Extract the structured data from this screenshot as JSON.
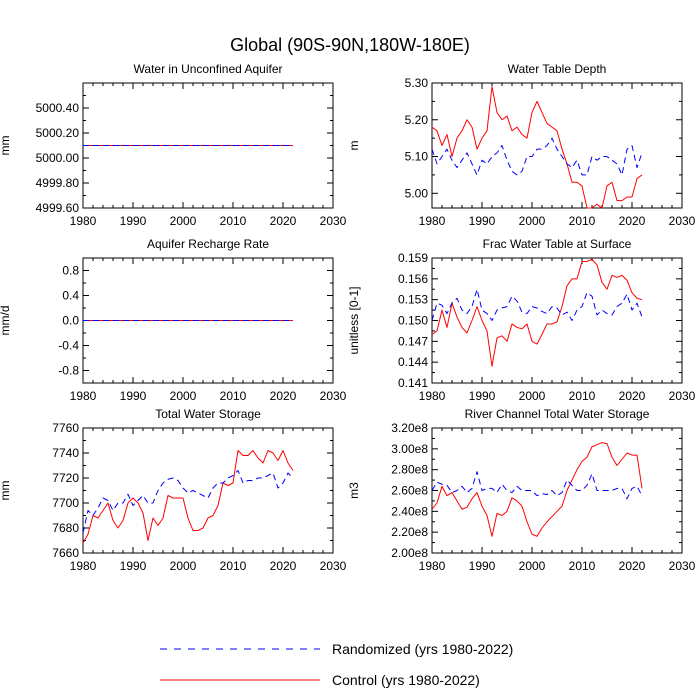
{
  "title": "Global (90S-90N,180W-180E)",
  "legend": [
    {
      "label": "Randomized (yrs 1980-2022)",
      "color": "#0000ff",
      "dash": "dashed"
    },
    {
      "label": "Control (yrs 1980-2022)",
      "color": "#ff0000",
      "dash": "solid"
    }
  ],
  "colors": {
    "randomized": "#0000ff",
    "control": "#ff0000"
  },
  "chart_data": [
    {
      "type": "line",
      "title": "Water in Unconfined Aquifer",
      "xlabel": "",
      "ylabel": "mm",
      "xlim": [
        1980,
        2030
      ],
      "ylim": [
        4999.6,
        5000.6
      ],
      "xticks": [
        1980,
        1990,
        2000,
        2010,
        2020,
        2030
      ],
      "yticks": [
        4999.6,
        4999.8,
        5000.0,
        5000.2,
        5000.4
      ],
      "ytick_labels": [
        "4999.60",
        "4999.80",
        "5000.00",
        "5000.20",
        "5000.40"
      ],
      "x": [
        1980,
        2022
      ],
      "series": [
        {
          "name": "Randomized (yrs 1980-2022)",
          "values": [
            5000.1,
            5000.1
          ]
        },
        {
          "name": "Control (yrs 1980-2022)",
          "values": [
            5000.1,
            5000.1
          ]
        }
      ]
    },
    {
      "type": "line",
      "title": "Water Table Depth",
      "xlabel": "",
      "ylabel": "m",
      "xlim": [
        1980,
        2030
      ],
      "ylim": [
        4.96,
        5.3
      ],
      "xticks": [
        1980,
        1990,
        2000,
        2010,
        2020,
        2030
      ],
      "yticks": [
        5.0,
        5.1,
        5.2,
        5.3
      ],
      "ytick_labels": [
        "5.00",
        "5.10",
        "5.20",
        "5.30"
      ],
      "x": [
        1980,
        1981,
        1982,
        1983,
        1984,
        1985,
        1986,
        1987,
        1988,
        1989,
        1990,
        1991,
        1992,
        1993,
        1994,
        1995,
        1996,
        1997,
        1998,
        1999,
        2000,
        2001,
        2002,
        2003,
        2004,
        2005,
        2006,
        2007,
        2008,
        2009,
        2010,
        2011,
        2012,
        2013,
        2014,
        2015,
        2016,
        2017,
        2018,
        2019,
        2020,
        2021,
        2022
      ],
      "series": [
        {
          "name": "Randomized (yrs 1980-2022)",
          "values": [
            5.12,
            5.08,
            5.1,
            5.12,
            5.09,
            5.07,
            5.09,
            5.11,
            5.08,
            5.05,
            5.09,
            5.08,
            5.1,
            5.11,
            5.13,
            5.09,
            5.06,
            5.05,
            5.06,
            5.1,
            5.1,
            5.12,
            5.12,
            5.13,
            5.15,
            5.12,
            5.1,
            5.08,
            5.07,
            5.09,
            5.05,
            5.05,
            5.1,
            5.09,
            5.1,
            5.1,
            5.09,
            5.08,
            5.05,
            5.12,
            5.13,
            5.07,
            5.11
          ]
        },
        {
          "name": "Control (yrs 1980-2022)",
          "values": [
            5.18,
            5.17,
            5.13,
            5.16,
            5.1,
            5.15,
            5.17,
            5.2,
            5.18,
            5.12,
            5.15,
            5.17,
            5.29,
            5.22,
            5.2,
            5.21,
            5.17,
            5.18,
            5.16,
            5.15,
            5.22,
            5.25,
            5.22,
            5.19,
            5.18,
            5.17,
            5.12,
            5.08,
            5.03,
            5.03,
            5.02,
            4.96,
            4.96,
            4.97,
            4.96,
            5.02,
            5.03,
            4.98,
            4.98,
            4.99,
            4.99,
            5.04,
            5.05
          ]
        }
      ]
    },
    {
      "type": "line",
      "title": "Aquifer Recharge Rate",
      "xlabel": "",
      "ylabel": "mm/d",
      "xlim": [
        1980,
        2030
      ],
      "ylim": [
        -1.0,
        1.0
      ],
      "xticks": [
        1980,
        1990,
        2000,
        2010,
        2020,
        2030
      ],
      "yticks": [
        -0.8,
        -0.4,
        0.0,
        0.4,
        0.8
      ],
      "ytick_labels": [
        "-0.8",
        "-0.4",
        "0.0",
        "0.4",
        "0.8"
      ],
      "x": [
        1980,
        2022
      ],
      "series": [
        {
          "name": "Randomized (yrs 1980-2022)",
          "values": [
            0.0,
            0.0
          ]
        },
        {
          "name": "Control (yrs 1980-2022)",
          "values": [
            0.0,
            0.0
          ]
        }
      ]
    },
    {
      "type": "line",
      "title": "Frac Water Table at Surface",
      "xlabel": "",
      "ylabel": "unitless [0-1]",
      "xlim": [
        1980,
        2030
      ],
      "ylim": [
        0.141,
        0.159
      ],
      "xticks": [
        1980,
        1990,
        2000,
        2010,
        2020,
        2030
      ],
      "yticks": [
        0.141,
        0.144,
        0.147,
        0.15,
        0.153,
        0.156,
        0.159
      ],
      "ytick_labels": [
        "0.141",
        "0.144",
        "0.147",
        "0.150",
        "0.153",
        "0.156",
        "0.159"
      ],
      "x": [
        1980,
        1981,
        1982,
        1983,
        1984,
        1985,
        1986,
        1987,
        1988,
        1989,
        1990,
        1991,
        1992,
        1993,
        1994,
        1995,
        1996,
        1997,
        1998,
        1999,
        2000,
        2001,
        2002,
        2003,
        2004,
        2005,
        2006,
        2007,
        2008,
        2009,
        2010,
        2011,
        2012,
        2013,
        2014,
        2015,
        2016,
        2017,
        2018,
        2019,
        2020,
        2021,
        2022
      ],
      "series": [
        {
          "name": "Randomized (yrs 1980-2022)",
          "values": [
            0.15,
            0.1525,
            0.1522,
            0.151,
            0.1525,
            0.1532,
            0.1515,
            0.151,
            0.152,
            0.1545,
            0.1515,
            0.151,
            0.15,
            0.1515,
            0.1518,
            0.152,
            0.1535,
            0.1528,
            0.1512,
            0.151,
            0.152,
            0.1518,
            0.1513,
            0.151,
            0.152,
            0.1518,
            0.1508,
            0.1512,
            0.15,
            0.1515,
            0.152,
            0.154,
            0.1535,
            0.1508,
            0.1515,
            0.151,
            0.1508,
            0.152,
            0.1525,
            0.1538,
            0.1515,
            0.1525,
            0.1505
          ]
        },
        {
          "name": "Control (yrs 1980-2022)",
          "values": [
            0.148,
            0.1485,
            0.1515,
            0.149,
            0.1525,
            0.1505,
            0.149,
            0.1482,
            0.15,
            0.152,
            0.15,
            0.1485,
            0.1434,
            0.1475,
            0.1478,
            0.147,
            0.1495,
            0.149,
            0.1488,
            0.1495,
            0.147,
            0.1466,
            0.148,
            0.1495,
            0.1495,
            0.1498,
            0.152,
            0.155,
            0.156,
            0.156,
            0.1585,
            0.1585,
            0.1588,
            0.158,
            0.1555,
            0.1545,
            0.1565,
            0.1562,
            0.1565,
            0.1558,
            0.154,
            0.1532,
            0.153
          ]
        }
      ]
    },
    {
      "type": "line",
      "title": "Total Water Storage",
      "xlabel": "",
      "ylabel": "mm",
      "xlim": [
        1980,
        2030
      ],
      "ylim": [
        7660,
        7760
      ],
      "xticks": [
        1980,
        1990,
        2000,
        2010,
        2020,
        2030
      ],
      "yticks": [
        7660,
        7680,
        7700,
        7720,
        7740,
        7760
      ],
      "ytick_labels": [
        "7660",
        "7680",
        "7700",
        "7720",
        "7740",
        "7760"
      ],
      "x": [
        1980,
        1981,
        1982,
        1983,
        1984,
        1985,
        1986,
        1987,
        1988,
        1989,
        1990,
        1991,
        1992,
        1993,
        1994,
        1995,
        1996,
        1997,
        1998,
        1999,
        2000,
        2001,
        2002,
        2003,
        2004,
        2005,
        2006,
        2007,
        2008,
        2009,
        2010,
        2011,
        2012,
        2013,
        2014,
        2015,
        2016,
        2017,
        2018,
        2019,
        2020,
        2021,
        2022
      ],
      "series": [
        {
          "name": "Randomized (yrs 1980-2022)",
          "values": [
            7676,
            7694,
            7690,
            7696,
            7704,
            7702,
            7694,
            7700,
            7700,
            7707,
            7698,
            7702,
            7706,
            7700,
            7700,
            7710,
            7716,
            7719,
            7720,
            7718,
            7712,
            7708,
            7710,
            7708,
            7706,
            7704,
            7712,
            7716,
            7716,
            7720,
            7722,
            7726,
            7716,
            7718,
            7718,
            7720,
            7720,
            7722,
            7724,
            7712,
            7716,
            7724,
            7720
          ]
        },
        {
          "name": "Control (yrs 1980-2022)",
          "values": [
            7668,
            7675,
            7690,
            7688,
            7694,
            7700,
            7686,
            7680,
            7686,
            7700,
            7704,
            7700,
            7692,
            7670,
            7688,
            7682,
            7688,
            7706,
            7704,
            7704,
            7704,
            7688,
            7678,
            7678,
            7680,
            7688,
            7690,
            7698,
            7716,
            7714,
            7716,
            7742,
            7738,
            7738,
            7742,
            7736,
            7732,
            7742,
            7740,
            7734,
            7742,
            7732,
            7726
          ]
        }
      ]
    },
    {
      "type": "line",
      "title": "River Channel Total Water Storage",
      "xlabel": "",
      "ylabel": "m3",
      "xlim": [
        1980,
        2030
      ],
      "ylim": [
        200000000.0,
        320000000.0
      ],
      "xticks": [
        1980,
        1990,
        2000,
        2010,
        2020,
        2030
      ],
      "yticks": [
        200000000.0,
        220000000.0,
        240000000.0,
        260000000.0,
        280000000.0,
        300000000.0,
        320000000.0
      ],
      "ytick_labels": [
        "2.00e8",
        "2.20e8",
        "2.40e8",
        "2.60e8",
        "2.80e8",
        "3.00e8",
        "3.20e8"
      ],
      "x": [
        1980,
        1981,
        1982,
        1983,
        1984,
        1985,
        1986,
        1987,
        1988,
        1989,
        1990,
        1991,
        1992,
        1993,
        1994,
        1995,
        1996,
        1997,
        1998,
        1999,
        2000,
        2001,
        2002,
        2003,
        2004,
        2005,
        2006,
        2007,
        2008,
        2009,
        2010,
        2011,
        2012,
        2013,
        2014,
        2015,
        2016,
        2017,
        2018,
        2019,
        2020,
        2021,
        2022
      ],
      "series": [
        {
          "name": "Randomized (yrs 1980-2022)",
          "values": [
            260000000.0,
            268000000.0,
            266000000.0,
            265000000.0,
            258000000.0,
            260000000.0,
            264000000.0,
            258000000.0,
            262000000.0,
            278000000.0,
            260000000.0,
            262000000.0,
            262000000.0,
            258000000.0,
            266000000.0,
            260000000.0,
            258000000.0,
            264000000.0,
            260000000.0,
            260000000.0,
            260000000.0,
            255000000.0,
            257000000.0,
            256000000.0,
            260000000.0,
            255000000.0,
            258000000.0,
            270000000.0,
            265000000.0,
            260000000.0,
            260000000.0,
            265000000.0,
            276000000.0,
            260000000.0,
            260000000.0,
            260000000.0,
            260000000.0,
            262000000.0,
            262000000.0,
            252000000.0,
            262000000.0,
            264000000.0,
            255000000.0
          ]
        },
        {
          "name": "Control (yrs 1980-2022)",
          "values": [
            242000000.0,
            248000000.0,
            264000000.0,
            255000000.0,
            258000000.0,
            250000000.0,
            242000000.0,
            244000000.0,
            252000000.0,
            258000000.0,
            245000000.0,
            236000000.0,
            216000000.0,
            238000000.0,
            236000000.0,
            240000000.0,
            253000000.0,
            250000000.0,
            245000000.0,
            230000000.0,
            218000000.0,
            216000000.0,
            224000000.0,
            230000000.0,
            235000000.0,
            240000000.0,
            245000000.0,
            260000000.0,
            270000000.0,
            280000000.0,
            288000000.0,
            292000000.0,
            302000000.0,
            304000000.0,
            306000000.0,
            305000000.0,
            292000000.0,
            284000000.0,
            290000000.0,
            296000000.0,
            294000000.0,
            294000000.0,
            262000000.0
          ]
        }
      ]
    }
  ]
}
